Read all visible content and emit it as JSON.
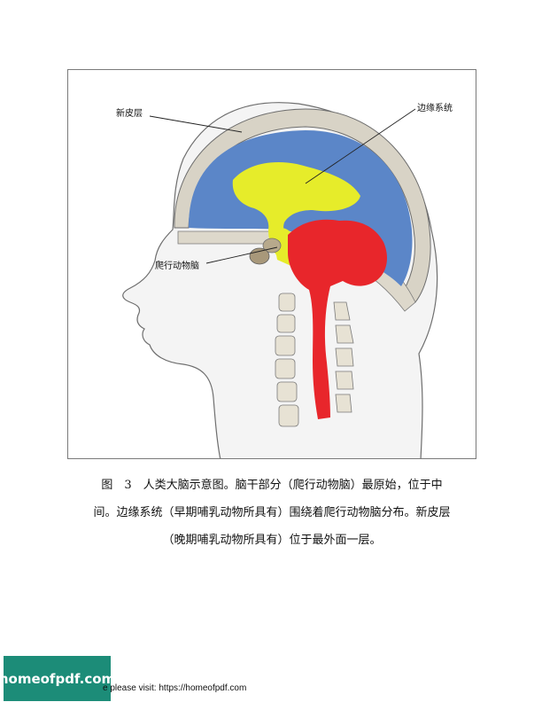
{
  "figure": {
    "labels": {
      "neocortex": "新皮层",
      "limbic": "边缘系统",
      "reptilian": "爬行动物脑"
    },
    "colors": {
      "neocortex": "#5b86c8",
      "limbic": "#e6ec2a",
      "reptilian": "#e8262b",
      "skin": "#f3f3f3",
      "skull": "#d8d3c6"
    }
  },
  "caption": {
    "line1": "图　3　人类大脑示意图。脑干部分（爬行动物脑）最原始，位于中",
    "line2": "间。边缘系统（早期哺乳动物所具有）围绕着爬行动物脑分布。新皮层",
    "line3": "（晚期哺乳动物所具有）位于最外面一层。"
  },
  "footer": {
    "badge": "homeofpdf.com",
    "text": "e please visit: https://homeofpdf.com"
  }
}
